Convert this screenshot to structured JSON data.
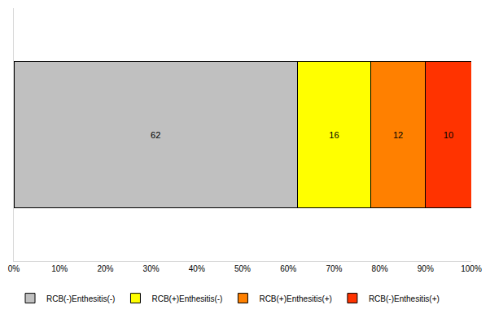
{
  "chart_data": {
    "type": "bar",
    "orientation": "horizontal",
    "stacked": true,
    "categories": [
      null
    ],
    "series": [
      {
        "name": "RCB(-)Enthesitis(-)",
        "color": "#c0c0c0",
        "values": [
          62
        ]
      },
      {
        "name": "RCB(+)Enthesitis(-)",
        "color": "#ffff00",
        "values": [
          16
        ]
      },
      {
        "name": "RCB(+)Enthesitis(+)",
        "color": "#ff8000",
        "values": [
          12
        ]
      },
      {
        "name": "RCB(-)Enthesitis(+)",
        "color": "#ff3300",
        "values": [
          10
        ]
      }
    ],
    "xlim": [
      0,
      100
    ],
    "xticks": [
      {
        "value": 0,
        "label": "0%"
      },
      {
        "value": 10,
        "label": "10%"
      },
      {
        "value": 20,
        "label": "20%"
      },
      {
        "value": 30,
        "label": "30%"
      },
      {
        "value": 40,
        "label": "40%"
      },
      {
        "value": 50,
        "label": "50%"
      },
      {
        "value": 60,
        "label": "60%"
      },
      {
        "value": 70,
        "label": "70%"
      },
      {
        "value": 80,
        "label": "80%"
      },
      {
        "value": 90,
        "label": "90%"
      },
      {
        "value": 100,
        "label": "100%"
      }
    ],
    "grid": false,
    "legend": "bottom",
    "data_labels": true,
    "tick_labels": "x"
  }
}
